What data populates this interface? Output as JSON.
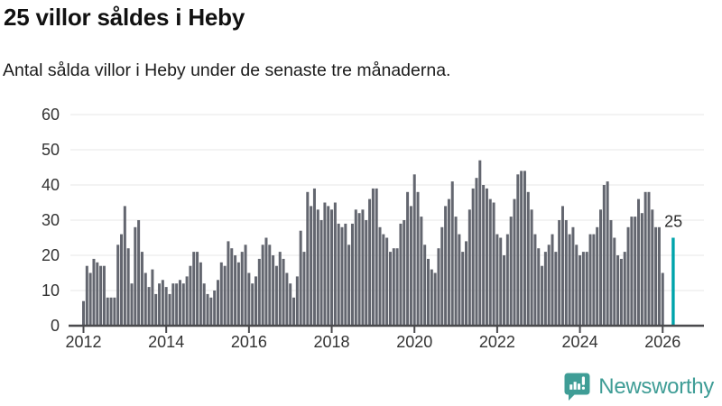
{
  "title": "25 villor såldes i Heby",
  "subtitle": "Antal sålda villor i Heby under de senaste tre månaderna.",
  "footer": {
    "brand": "Newsworthy"
  },
  "colors": {
    "bar": "#63666f",
    "highlight": "#00a4ab",
    "axis": "#4a4a4d",
    "grid": "#e7e7e7",
    "tick_text": "#333333",
    "brand": "#3f9d96"
  },
  "chart_data": {
    "type": "bar",
    "title": "25 villor såldes i Heby",
    "subtitle": "Antal sålda villor i Heby under de senaste tre månaderna.",
    "unit": "sålda villor (rullande tre månader)",
    "frequency": "monthly",
    "x_start": "2012-01",
    "x_tick_labels": [
      "2012",
      "2014",
      "2016",
      "2018",
      "2020",
      "2022",
      "2024",
      "2026"
    ],
    "y_ticks": [
      0,
      10,
      20,
      30,
      40,
      50,
      60
    ],
    "ylim": [
      0,
      60
    ],
    "grid": true,
    "legend": false,
    "values": [
      7,
      17,
      15,
      19,
      18,
      17,
      17,
      8,
      8,
      8,
      23,
      26,
      34,
      22,
      12,
      28,
      30,
      21,
      15,
      11,
      16,
      9,
      12,
      13,
      11,
      9,
      12,
      12,
      13,
      12,
      14,
      17,
      21,
      21,
      18,
      12,
      9,
      8,
      10,
      13,
      18,
      17,
      24,
      22,
      20,
      18,
      21,
      23,
      15,
      12,
      14,
      19,
      23,
      25,
      23,
      20,
      17,
      21,
      19,
      15,
      12,
      8,
      14,
      27,
      21,
      38,
      34,
      39,
      33,
      30,
      35,
      34,
      33,
      35,
      29,
      28,
      29,
      23,
      29,
      33,
      32,
      33,
      30,
      36,
      39,
      39,
      28,
      26,
      25,
      21,
      22,
      22,
      29,
      30,
      38,
      34,
      43,
      38,
      31,
      23,
      19,
      16,
      15,
      22,
      28,
      34,
      36,
      41,
      31,
      26,
      21,
      24,
      33,
      39,
      42,
      47,
      40,
      39,
      36,
      35,
      26,
      25,
      20,
      26,
      31,
      36,
      43,
      44,
      44,
      38,
      33,
      26,
      22,
      17,
      21,
      23,
      26,
      21,
      30,
      34,
      30,
      26,
      28,
      23,
      20,
      21,
      21,
      26,
      26,
      28,
      33,
      40,
      41,
      30,
      25,
      20,
      19,
      21,
      28,
      31,
      31,
      36,
      32,
      38,
      38,
      33,
      28,
      28,
      15
    ],
    "highlight": {
      "value": 25,
      "label": "25",
      "x": "2026",
      "gap_slots": 1
    }
  }
}
